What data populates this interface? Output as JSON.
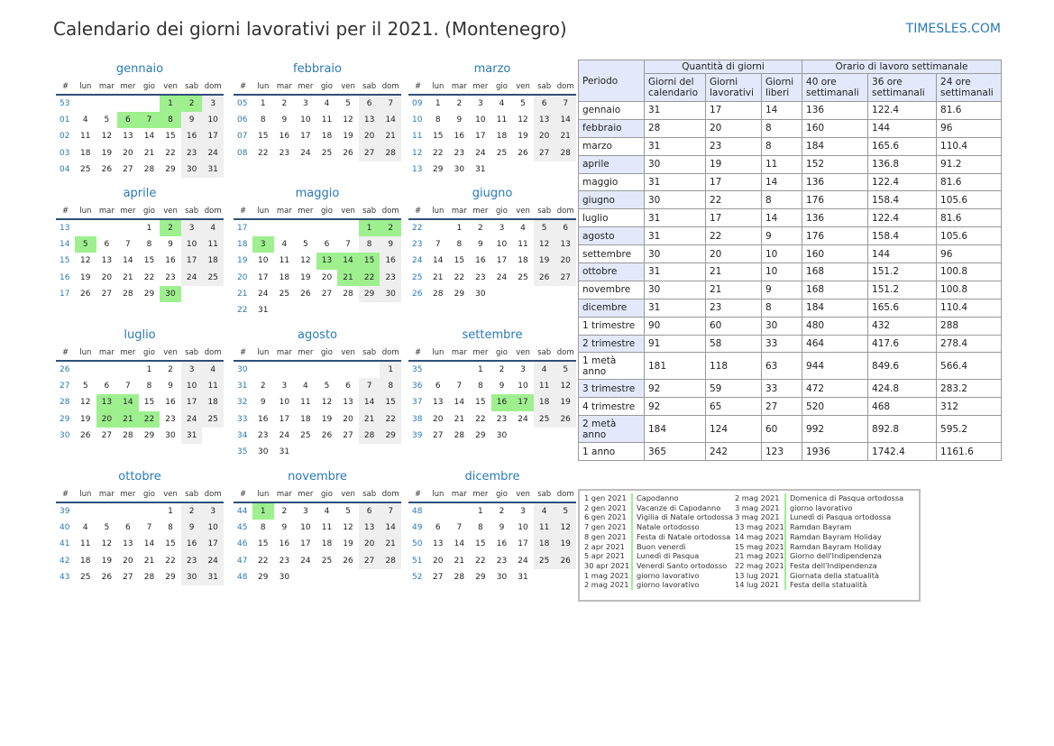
{
  "title": "Calendario dei giorni lavorativi per il 2021. (Montenegro)",
  "site": "TIMESLES.COM",
  "colors": {
    "accent": "#2a7ab8",
    "holiday": "#9ef08f",
    "weekend": "#efefef",
    "header_bg": "#e3e9fa"
  },
  "weekday_headers": [
    "#",
    "lun",
    "mar",
    "mer",
    "gio",
    "ven",
    "sab",
    "dom"
  ],
  "months": [
    {
      "name": "gennaio",
      "weeks": [
        [
          "53",
          "",
          "",
          "",
          "",
          "1",
          "2",
          "3"
        ],
        [
          "01",
          "4",
          "5",
          "6",
          "7",
          "8",
          "9",
          "10"
        ],
        [
          "02",
          "11",
          "12",
          "13",
          "14",
          "15",
          "16",
          "17"
        ],
        [
          "03",
          "18",
          "19",
          "20",
          "21",
          "22",
          "23",
          "24"
        ],
        [
          "04",
          "25",
          "26",
          "27",
          "28",
          "29",
          "30",
          "31"
        ]
      ],
      "holidays": [
        "1",
        "2",
        "6",
        "7",
        "8"
      ]
    },
    {
      "name": "febbraio",
      "weeks": [
        [
          "05",
          "1",
          "2",
          "3",
          "4",
          "5",
          "6",
          "7"
        ],
        [
          "06",
          "8",
          "9",
          "10",
          "11",
          "12",
          "13",
          "14"
        ],
        [
          "07",
          "15",
          "16",
          "17",
          "18",
          "19",
          "20",
          "21"
        ],
        [
          "08",
          "22",
          "23",
          "24",
          "25",
          "26",
          "27",
          "28"
        ]
      ],
      "holidays": []
    },
    {
      "name": "marzo",
      "weeks": [
        [
          "09",
          "1",
          "2",
          "3",
          "4",
          "5",
          "6",
          "7"
        ],
        [
          "10",
          "8",
          "9",
          "10",
          "11",
          "12",
          "13",
          "14"
        ],
        [
          "11",
          "15",
          "16",
          "17",
          "18",
          "19",
          "20",
          "21"
        ],
        [
          "12",
          "22",
          "23",
          "24",
          "25",
          "26",
          "27",
          "28"
        ],
        [
          "13",
          "29",
          "30",
          "31",
          "",
          "",
          "",
          ""
        ]
      ],
      "holidays": []
    },
    {
      "name": "aprile",
      "weeks": [
        [
          "13",
          "",
          "",
          "",
          "1",
          "2",
          "3",
          "4"
        ],
        [
          "14",
          "5",
          "6",
          "7",
          "8",
          "9",
          "10",
          "11"
        ],
        [
          "15",
          "12",
          "13",
          "14",
          "15",
          "16",
          "17",
          "18"
        ],
        [
          "16",
          "19",
          "20",
          "21",
          "22",
          "23",
          "24",
          "25"
        ],
        [
          "17",
          "26",
          "27",
          "28",
          "29",
          "30",
          "",
          ""
        ]
      ],
      "holidays": [
        "2",
        "5",
        "30"
      ]
    },
    {
      "name": "maggio",
      "weeks": [
        [
          "17",
          "",
          "",
          "",
          "",
          "",
          "1",
          "2"
        ],
        [
          "18",
          "3",
          "4",
          "5",
          "6",
          "7",
          "8",
          "9"
        ],
        [
          "19",
          "10",
          "11",
          "12",
          "13",
          "14",
          "15",
          "16"
        ],
        [
          "20",
          "17",
          "18",
          "19",
          "20",
          "21",
          "22",
          "23"
        ],
        [
          "21",
          "24",
          "25",
          "26",
          "27",
          "28",
          "29",
          "30"
        ],
        [
          "22",
          "31",
          "",
          "",
          "",
          "",
          "",
          ""
        ]
      ],
      "holidays": [
        "1",
        "2",
        "3",
        "13",
        "14",
        "15",
        "21",
        "22"
      ]
    },
    {
      "name": "giugno",
      "weeks": [
        [
          "22",
          "",
          "1",
          "2",
          "3",
          "4",
          "5",
          "6"
        ],
        [
          "23",
          "7",
          "8",
          "9",
          "10",
          "11",
          "12",
          "13"
        ],
        [
          "24",
          "14",
          "15",
          "16",
          "17",
          "18",
          "19",
          "20"
        ],
        [
          "25",
          "21",
          "22",
          "23",
          "24",
          "25",
          "26",
          "27"
        ],
        [
          "26",
          "28",
          "29",
          "30",
          "",
          "",
          "",
          ""
        ]
      ],
      "holidays": []
    },
    {
      "name": "luglio",
      "weeks": [
        [
          "26",
          "",
          "",
          "",
          "1",
          "2",
          "3",
          "4"
        ],
        [
          "27",
          "5",
          "6",
          "7",
          "8",
          "9",
          "10",
          "11"
        ],
        [
          "28",
          "12",
          "13",
          "14",
          "15",
          "16",
          "17",
          "18"
        ],
        [
          "29",
          "19",
          "20",
          "21",
          "22",
          "23",
          "24",
          "25"
        ],
        [
          "30",
          "26",
          "27",
          "28",
          "29",
          "30",
          "31",
          ""
        ]
      ],
      "holidays": [
        "13",
        "14",
        "20",
        "21",
        "22"
      ]
    },
    {
      "name": "agosto",
      "weeks": [
        [
          "30",
          "",
          "",
          "",
          "",
          "",
          "",
          "1"
        ],
        [
          "31",
          "2",
          "3",
          "4",
          "5",
          "6",
          "7",
          "8"
        ],
        [
          "32",
          "9",
          "10",
          "11",
          "12",
          "13",
          "14",
          "15"
        ],
        [
          "33",
          "16",
          "17",
          "18",
          "19",
          "20",
          "21",
          "22"
        ],
        [
          "34",
          "23",
          "24",
          "25",
          "26",
          "27",
          "28",
          "29"
        ],
        [
          "35",
          "30",
          "31",
          "",
          "",
          "",
          "",
          ""
        ]
      ],
      "holidays": []
    },
    {
      "name": "settembre",
      "weeks": [
        [
          "35",
          "",
          "",
          "1",
          "2",
          "3",
          "4",
          "5"
        ],
        [
          "36",
          "6",
          "7",
          "8",
          "9",
          "10",
          "11",
          "12"
        ],
        [
          "37",
          "13",
          "14",
          "15",
          "16",
          "17",
          "18",
          "19"
        ],
        [
          "38",
          "20",
          "21",
          "22",
          "23",
          "24",
          "25",
          "26"
        ],
        [
          "39",
          "27",
          "28",
          "29",
          "30",
          "",
          "",
          ""
        ]
      ],
      "holidays": [
        "16",
        "17"
      ]
    },
    {
      "name": "ottobre",
      "weeks": [
        [
          "39",
          "",
          "",
          "",
          "",
          "1",
          "2",
          "3"
        ],
        [
          "40",
          "4",
          "5",
          "6",
          "7",
          "8",
          "9",
          "10"
        ],
        [
          "41",
          "11",
          "12",
          "13",
          "14",
          "15",
          "16",
          "17"
        ],
        [
          "42",
          "18",
          "19",
          "20",
          "21",
          "22",
          "23",
          "24"
        ],
        [
          "43",
          "25",
          "26",
          "27",
          "28",
          "29",
          "30",
          "31"
        ]
      ],
      "holidays": []
    },
    {
      "name": "novembre",
      "weeks": [
        [
          "44",
          "1",
          "2",
          "3",
          "4",
          "5",
          "6",
          "7"
        ],
        [
          "45",
          "8",
          "9",
          "10",
          "11",
          "12",
          "13",
          "14"
        ],
        [
          "46",
          "15",
          "16",
          "17",
          "18",
          "19",
          "20",
          "21"
        ],
        [
          "47",
          "22",
          "23",
          "24",
          "25",
          "26",
          "27",
          "28"
        ],
        [
          "48",
          "29",
          "30",
          "",
          "",
          "",
          "",
          ""
        ]
      ],
      "holidays": [
        "1"
      ]
    },
    {
      "name": "dicembre",
      "weeks": [
        [
          "48",
          "",
          "",
          "1",
          "2",
          "3",
          "4",
          "5"
        ],
        [
          "49",
          "6",
          "7",
          "8",
          "9",
          "10",
          "11",
          "12"
        ],
        [
          "50",
          "13",
          "14",
          "15",
          "16",
          "17",
          "18",
          "19"
        ],
        [
          "51",
          "20",
          "21",
          "22",
          "23",
          "24",
          "25",
          "26"
        ],
        [
          "52",
          "27",
          "28",
          "29",
          "30",
          "31",
          "",
          ""
        ]
      ],
      "holidays": []
    }
  ],
  "summary": {
    "periodo": "Periodo",
    "group_days": "Quantità di giorni",
    "group_hours": "Orario di lavoro settimanale",
    "cols": [
      "Giorni del calendario",
      "Giorni lavorativi",
      "Giorni liberi",
      "40 ore settimanali",
      "36 ore settimanali",
      "24 ore settimanali"
    ],
    "rows": [
      [
        "gennaio",
        "31",
        "17",
        "14",
        "136",
        "122.4",
        "81.6"
      ],
      [
        "febbraio",
        "28",
        "20",
        "8",
        "160",
        "144",
        "96"
      ],
      [
        "marzo",
        "31",
        "23",
        "8",
        "184",
        "165.6",
        "110.4"
      ],
      [
        "aprile",
        "30",
        "19",
        "11",
        "152",
        "136.8",
        "91.2"
      ],
      [
        "maggio",
        "31",
        "17",
        "14",
        "136",
        "122.4",
        "81.6"
      ],
      [
        "giugno",
        "30",
        "22",
        "8",
        "176",
        "158.4",
        "105.6"
      ],
      [
        "luglio",
        "31",
        "17",
        "14",
        "136",
        "122.4",
        "81.6"
      ],
      [
        "agosto",
        "31",
        "22",
        "9",
        "176",
        "158.4",
        "105.6"
      ],
      [
        "settembre",
        "30",
        "20",
        "10",
        "160",
        "144",
        "96"
      ],
      [
        "ottobre",
        "31",
        "21",
        "10",
        "168",
        "151.2",
        "100.8"
      ],
      [
        "novembre",
        "30",
        "21",
        "9",
        "168",
        "151.2",
        "100.8"
      ],
      [
        "dicembre",
        "31",
        "23",
        "8",
        "184",
        "165.6",
        "110.4"
      ],
      [
        "1 trimestre",
        "90",
        "60",
        "30",
        "480",
        "432",
        "288"
      ],
      [
        "2 trimestre",
        "91",
        "58",
        "33",
        "464",
        "417.6",
        "278.4"
      ],
      [
        "1 metà anno",
        "181",
        "118",
        "63",
        "944",
        "849.6",
        "566.4"
      ],
      [
        "3 trimestre",
        "92",
        "59",
        "33",
        "472",
        "424.8",
        "283.2"
      ],
      [
        "4 trimestre",
        "92",
        "65",
        "27",
        "520",
        "468",
        "312"
      ],
      [
        "2 metà anno",
        "184",
        "124",
        "60",
        "992",
        "892.8",
        "595.2"
      ],
      [
        "1 anno",
        "365",
        "242",
        "123",
        "1936",
        "1742.4",
        "1161.6"
      ]
    ]
  },
  "holidays_list": {
    "left": [
      [
        "1 gen 2021",
        "Capodanno"
      ],
      [
        "2 gen 2021",
        "Vacanze di Capodanno"
      ],
      [
        "6 gen 2021",
        "Vigilia di Natale ortodossa"
      ],
      [
        "7 gen 2021",
        "Natale ortodosso"
      ],
      [
        "8 gen 2021",
        "Festa di Natale ortodossa"
      ],
      [
        "2 apr 2021",
        "Buon venerdì"
      ],
      [
        "5 apr 2021",
        "Lunedì di Pasqua"
      ],
      [
        "30 apr 2021",
        "Venerdì Santo ortodosso"
      ],
      [
        "1 mag 2021",
        "giorno lavorativo"
      ],
      [
        "2 mag 2021",
        "giorno lavorativo"
      ]
    ],
    "right": [
      [
        "2 mag 2021",
        "Domenica di Pasqua ortodossa"
      ],
      [
        "3 mag 2021",
        "giorno lavorativo"
      ],
      [
        "3 mag 2021",
        "Lunedì di Pasqua ortodossa"
      ],
      [
        "13 mag 2021",
        "Ramdan Bayram"
      ],
      [
        "14 mag 2021",
        "Ramdan Bayram Holiday"
      ],
      [
        "15 mag 2021",
        "Ramdan Bayram Holiday"
      ],
      [
        "21 mag 2021",
        "Giorno dell'Indipendenza"
      ],
      [
        "22 mag 2021",
        "Festa dell'Indipendenza"
      ],
      [
        "13 lug 2021",
        "Giornata della statualità"
      ],
      [
        "14 lug 2021",
        "Festa della statualità"
      ]
    ]
  }
}
